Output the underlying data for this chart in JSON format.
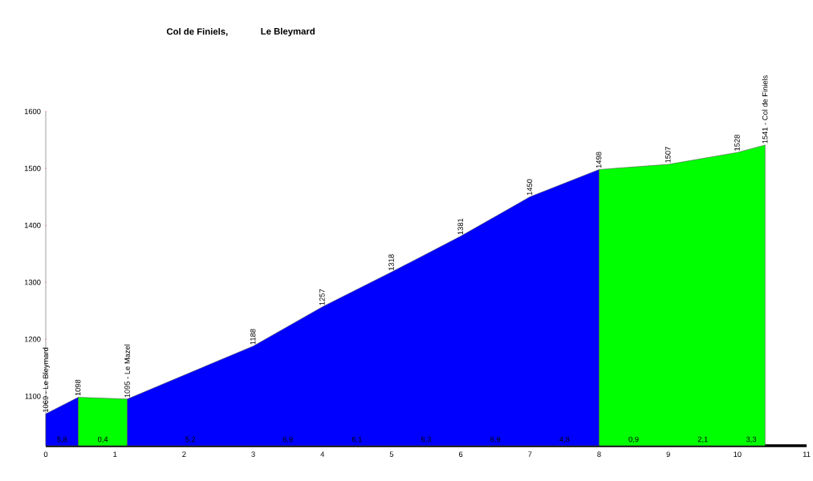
{
  "chart_data": {
    "type": "area",
    "title": "Col de Finiels,",
    "subtitle": "Le Bleymard",
    "xlim": [
      0,
      11
    ],
    "ylim": [
      1013,
      1600
    ],
    "xticks": [
      0,
      1,
      2,
      3,
      4,
      5,
      6,
      7,
      8,
      9,
      10,
      11
    ],
    "yticks": [
      1100,
      1200,
      1300,
      1400,
      1500,
      1600
    ],
    "grid": false,
    "series": [
      {
        "color": "#0000ff",
        "x": [
          0,
          0.47
        ],
        "values": [
          1069,
          1098
        ]
      },
      {
        "color": "#00ff00",
        "x": [
          0.47,
          1.18
        ],
        "values": [
          1098,
          1095
        ]
      },
      {
        "color": "#0000ff",
        "x": [
          1.18,
          3,
          4,
          5,
          6,
          7,
          8
        ],
        "values": [
          1095,
          1188,
          1257,
          1318,
          1381,
          1450,
          1498
        ]
      },
      {
        "color": "#00ff00",
        "x": [
          8,
          9,
          10,
          10.4
        ],
        "values": [
          1498,
          1507,
          1528,
          1541
        ]
      }
    ],
    "annotations": [
      {
        "text": "1069 - Le Bleymard",
        "x": 0,
        "y": 1069
      },
      {
        "text": "1098",
        "x": 0.47,
        "y": 1098
      },
      {
        "text": "1095 - Le Mazel",
        "x": 1.18,
        "y": 1095
      },
      {
        "text": "1188",
        "x": 3,
        "y": 1188
      },
      {
        "text": "1257",
        "x": 4,
        "y": 1257
      },
      {
        "text": "1318",
        "x": 5,
        "y": 1318
      },
      {
        "text": "1381",
        "x": 6,
        "y": 1381
      },
      {
        "text": "1450",
        "x": 7,
        "y": 1450
      },
      {
        "text": "1498",
        "x": 8,
        "y": 1498
      },
      {
        "text": "1507",
        "x": 9,
        "y": 1507
      },
      {
        "text": "1528",
        "x": 10,
        "y": 1528
      },
      {
        "text": "1541 - Col de Finiels",
        "x": 10.4,
        "y": 1541
      },
      {
        "text": "5,8",
        "x": 0.235,
        "y": 1013
      },
      {
        "text": "0,4",
        "x": 0.825,
        "y": 1013
      },
      {
        "text": "5,2",
        "x": 2.09,
        "y": 1013
      },
      {
        "text": "6,9",
        "x": 3.5,
        "y": 1013
      },
      {
        "text": "6,1",
        "x": 4.5,
        "y": 1013
      },
      {
        "text": "6,3",
        "x": 5.5,
        "y": 1013
      },
      {
        "text": "6,9",
        "x": 6.5,
        "y": 1013
      },
      {
        "text": "4,8",
        "x": 7.5,
        "y": 1013
      },
      {
        "text": "0,9",
        "x": 8.5,
        "y": 1013
      },
      {
        "text": "2,1",
        "x": 9.5,
        "y": 1013
      },
      {
        "text": "3,3",
        "x": 10.2,
        "y": 1013
      }
    ]
  }
}
